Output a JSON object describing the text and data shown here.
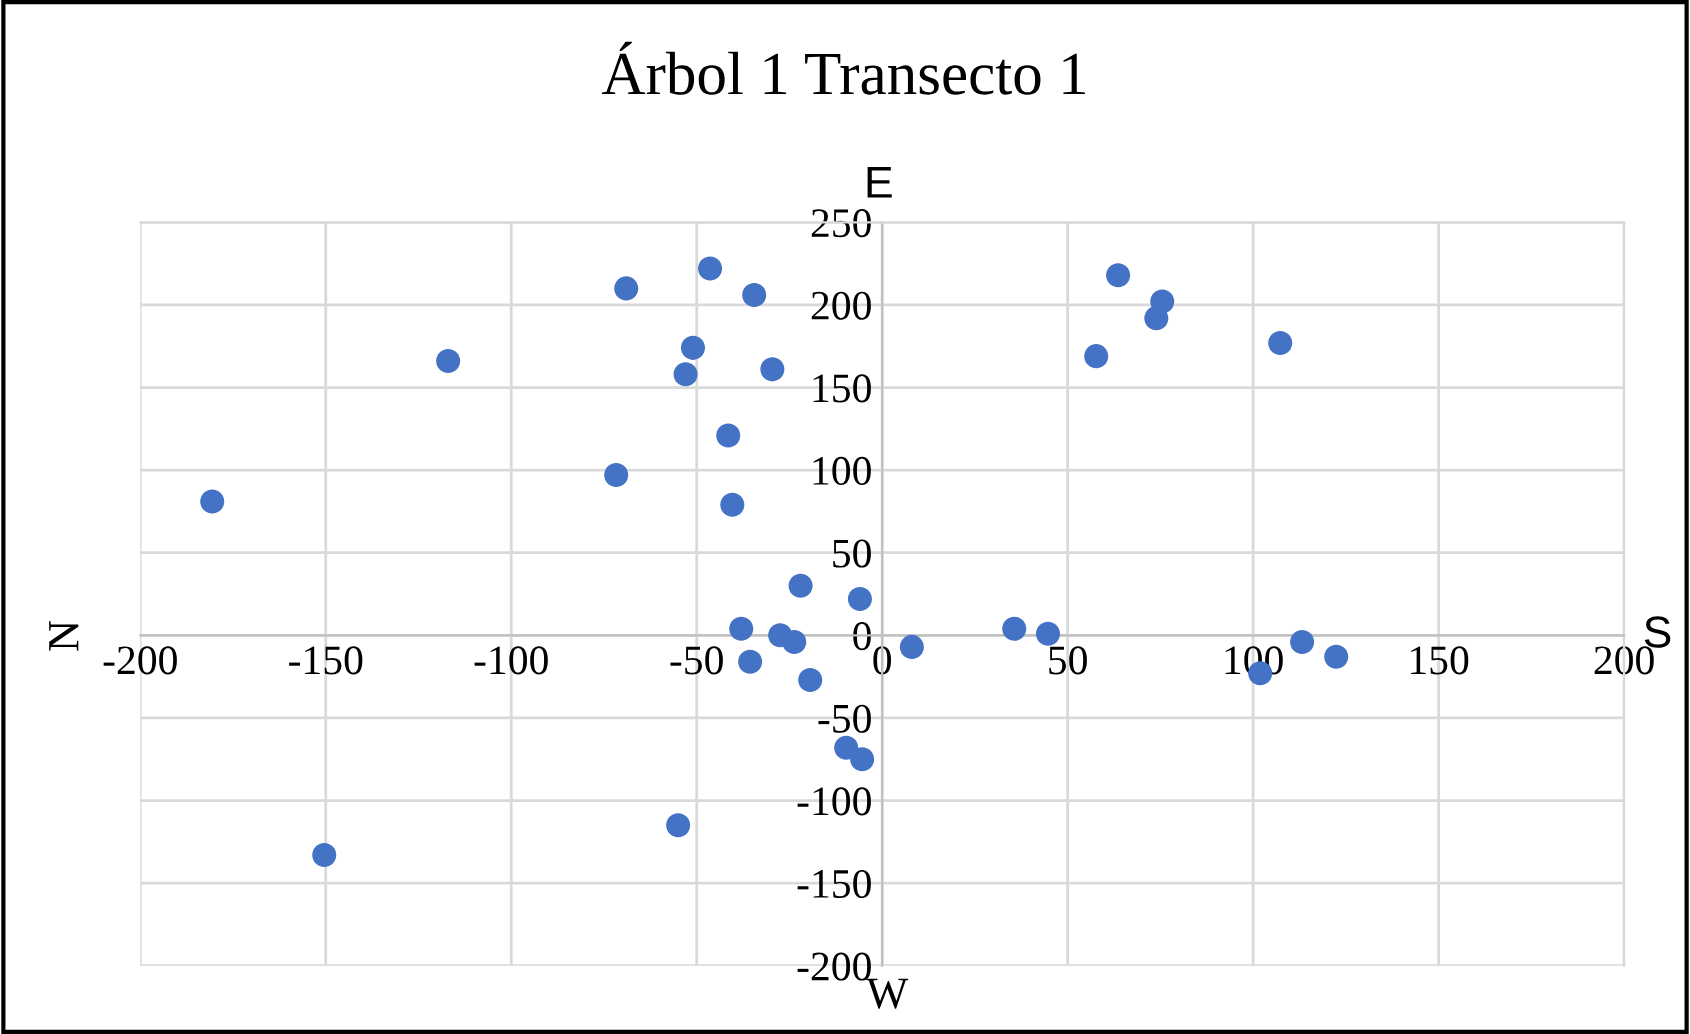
{
  "chart_data": {
    "type": "scatter",
    "title": "Árbol 1 Transecto 1",
    "annotations": [
      "E",
      "S",
      "W",
      "N"
    ],
    "x": [
      -180.6,
      -150.4,
      -117,
      -69,
      -46.4,
      -34.5,
      -51,
      -53,
      -29.6,
      -71.7,
      -41.5,
      -40.4,
      -22,
      -6,
      -38,
      -27.5,
      -23.7,
      -35.6,
      -19.4,
      -9.7,
      -5.4,
      -55,
      8,
      35.6,
      44.7,
      63.6,
      75.5,
      73.9,
      57.7,
      107.3,
      101.9,
      113.2,
      122.4
    ],
    "series": [
      {
        "color": "#4472c4",
        "values": [
          81,
          -133,
          166,
          210,
          222,
          206,
          174,
          158,
          161,
          97,
          121,
          79,
          30,
          22,
          4,
          0,
          -4,
          -16,
          -27,
          -68,
          -75,
          -115,
          -7,
          4,
          1,
          218,
          202,
          192,
          169,
          177,
          -23,
          -4,
          -13
        ]
      }
    ],
    "xlim": [
      -200,
      200
    ],
    "ylim": [
      -200,
      250
    ],
    "xticks": [
      -200,
      -150,
      -100,
      -50,
      0,
      50,
      100,
      150,
      200
    ],
    "yticks": [
      -200,
      -150,
      -100,
      -50,
      0,
      50,
      100,
      150,
      200,
      250
    ],
    "grid": true,
    "marker": "circle"
  }
}
